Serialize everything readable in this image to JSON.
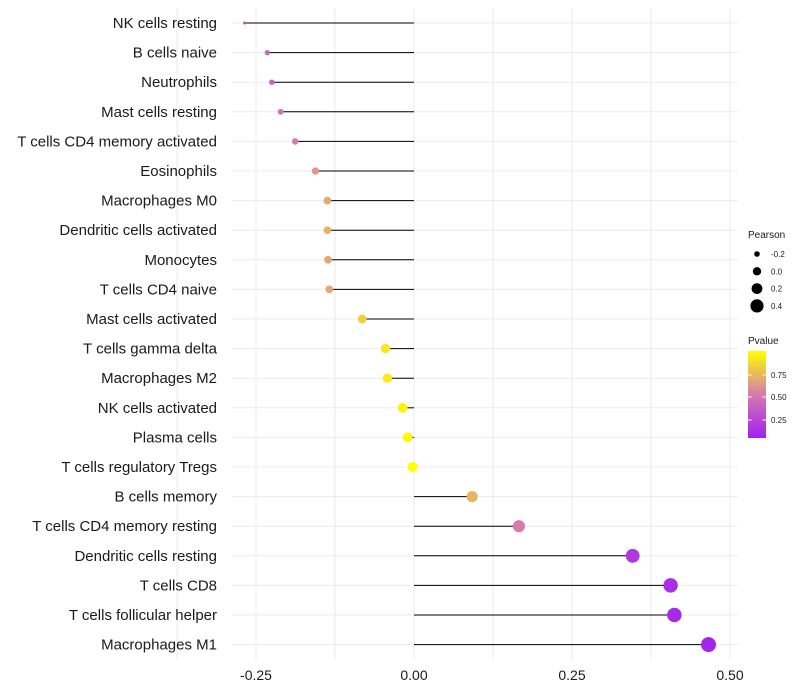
{
  "chart_data": {
    "type": "lollipop",
    "title": "",
    "xlabel": "",
    "ylabel": "",
    "xlim": [
      -0.27,
      0.5
    ],
    "x_ticks": [
      -0.25,
      0.0,
      0.25,
      0.5
    ],
    "x_tick_labels": [
      "-0.25",
      "0.00",
      "0.25",
      "0.50"
    ],
    "baseline": 0,
    "grid": true,
    "categories": [
      "NK cells resting",
      "B cells naive",
      "Neutrophils",
      "Mast cells resting",
      "T cells CD4 memory activated",
      "Eosinophils",
      "Macrophages M0",
      "Dendritic cells activated",
      "Monocytes",
      "T cells CD4 naive",
      "Mast cells activated",
      "T cells gamma delta",
      "Macrophages M2",
      "NK cells activated",
      "Plasma cells",
      "T cells regulatory  Tregs",
      "B cells memory",
      "T cells CD4 memory resting",
      "Dendritic cells resting",
      "T cells CD8",
      "T cells follicular helper",
      "Macrophages M1"
    ],
    "series": [
      {
        "name": "Pearson",
        "values": [
          -0.268,
          -0.232,
          -0.225,
          -0.211,
          -0.188,
          -0.156,
          -0.137,
          -0.137,
          -0.136,
          -0.134,
          -0.082,
          -0.045,
          -0.042,
          -0.018,
          -0.01,
          -0.002,
          0.092,
          0.166,
          0.346,
          0.406,
          0.412,
          0.466
        ]
      },
      {
        "name": "Pvalue",
        "values": [
          0.28,
          0.4,
          0.36,
          0.48,
          0.52,
          0.6,
          0.68,
          0.7,
          0.67,
          0.68,
          0.82,
          0.91,
          0.93,
          0.96,
          0.98,
          1.0,
          0.72,
          0.5,
          0.14,
          0.08,
          0.06,
          0.03
        ]
      }
    ],
    "legend_position": "right",
    "legend": {
      "size": {
        "title": "Pearson",
        "values": [
          -0.2,
          0.0,
          0.2,
          0.4
        ],
        "labels": [
          "-0.2",
          "0.0",
          "0.2",
          "0.4"
        ]
      },
      "color": {
        "title": "Pvalue",
        "range": [
          0.0,
          1.0
        ],
        "ticks": [
          0.25,
          0.5,
          0.75
        ],
        "tick_labels": [
          "0.25",
          "0.50",
          "0.75"
        ],
        "low_color": "#a020f0",
        "mid_color": "#d67ab0",
        "high_color": "#ffff00"
      }
    }
  }
}
